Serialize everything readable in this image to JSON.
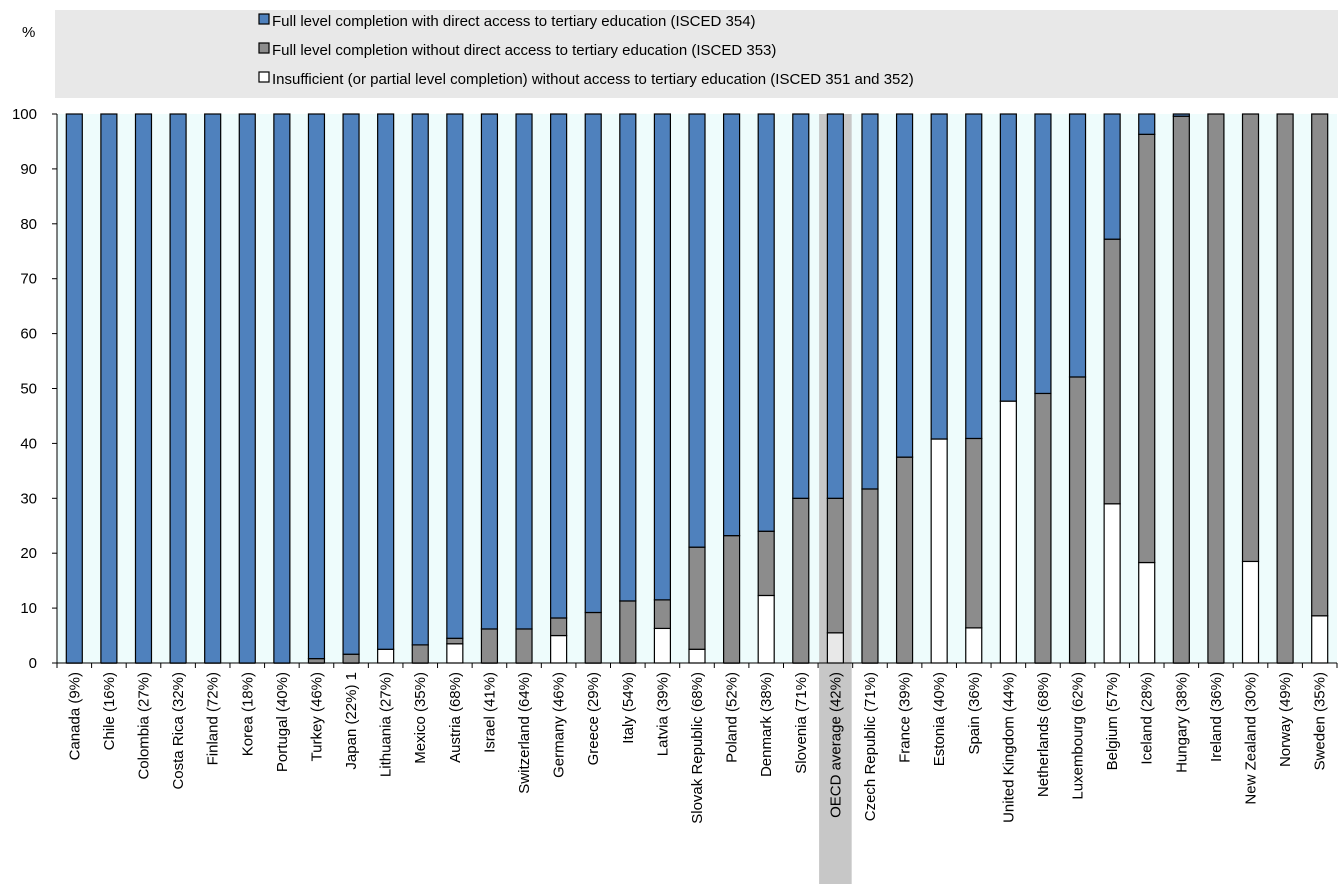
{
  "chart_data": {
    "type": "bar",
    "stacked": true,
    "y_unit_label": "%",
    "ylim": [
      0,
      100
    ],
    "y_ticks": [
      0,
      10,
      20,
      30,
      40,
      50,
      60,
      70,
      80,
      90,
      100
    ],
    "grid": false,
    "legend_position": "top",
    "categories": [
      "Canada (9%)",
      "Chile (16%)",
      "Colombia (27%)",
      "Costa Rica (32%)",
      "Finland (72%)",
      "Korea (18%)",
      "Portugal (40%)",
      "Turkey (46%)",
      "Japan (22%) 1",
      "Lithuania (27%)",
      "Mexico (35%)",
      "Austria (68%)",
      "Israel (41%)",
      "Switzerland (64%)",
      "Germany (46%)",
      "Greece (29%)",
      "Italy (54%)",
      "Latvia (39%)",
      "Slovak Republic (68%)",
      "Poland (52%)",
      "Denmark (38%)",
      "Slovenia (71%)",
      "OECD average (42%)",
      "Czech Republic (71%)",
      "France (39%)",
      "Estonia (40%)",
      "Spain (36%)",
      "United Kingdom (44%)",
      "Netherlands (68%)",
      "Luxembourg (62%)",
      "Belgium (57%)",
      "Iceland (28%)",
      "Hungary (38%)",
      "Ireland (36%)",
      "New Zealand (30%)",
      "Norway (49%)",
      "Sweden (35%)"
    ],
    "highlight_category": "OECD average (42%)",
    "series": [
      {
        "name": "Insufficient (or partial level completion) without access to tertiary education (ISCED 351 and 352)",
        "color": "#ffffff",
        "values": [
          0,
          0,
          0,
          0,
          0,
          0,
          0,
          0,
          0,
          2.5,
          0,
          3.5,
          0,
          0,
          5,
          0,
          0,
          6.3,
          2.5,
          0,
          12.3,
          0,
          5.5,
          0,
          0,
          40.8,
          6.4,
          47.7,
          0,
          0,
          29,
          18.3,
          0,
          0,
          18.5,
          0,
          8.6
        ]
      },
      {
        "name": "Full level completion without direct access to tertiary education (ISCED 353)",
        "color": "#8c8c8c",
        "values": [
          0,
          0,
          0,
          0,
          0,
          0,
          0,
          0.8,
          1.6,
          0,
          3.3,
          1,
          6.2,
          6.2,
          3.2,
          9.2,
          11.3,
          5.2,
          18.6,
          23.2,
          11.7,
          30,
          24.5,
          31.7,
          37.5,
          0,
          34.5,
          0,
          49.1,
          52.1,
          48.2,
          78,
          99.6,
          100,
          81.5,
          100,
          91.4
        ]
      },
      {
        "name": "Full level completion with direct access to tertiary education (ISCED 354)",
        "color": "#4f81bd",
        "values": [
          100,
          100,
          100,
          100,
          100,
          100,
          100,
          99.2,
          98.4,
          97.5,
          96.7,
          95.5,
          93.8,
          93.8,
          91.8,
          90.8,
          88.7,
          88.5,
          78.9,
          76.8,
          76,
          70,
          70,
          68.3,
          62.5,
          59.2,
          59.1,
          52.3,
          50.9,
          47.9,
          22.8,
          3.7,
          0.4,
          0,
          0,
          0,
          0
        ]
      }
    ],
    "legend": [
      "Full level completion with direct access to tertiary education (ISCED 354)",
      "Full level completion without direct access to tertiary education (ISCED 353)",
      "Insufficient (or partial level completion) without access to tertiary education (ISCED 351 and 352)"
    ],
    "colors": {
      "plot_background": "#eefcfc",
      "legend_background": "#e8e8e8",
      "highlight_band": "#c7c7c7",
      "highlight_bottom_segment": "#e8e8e8"
    }
  }
}
